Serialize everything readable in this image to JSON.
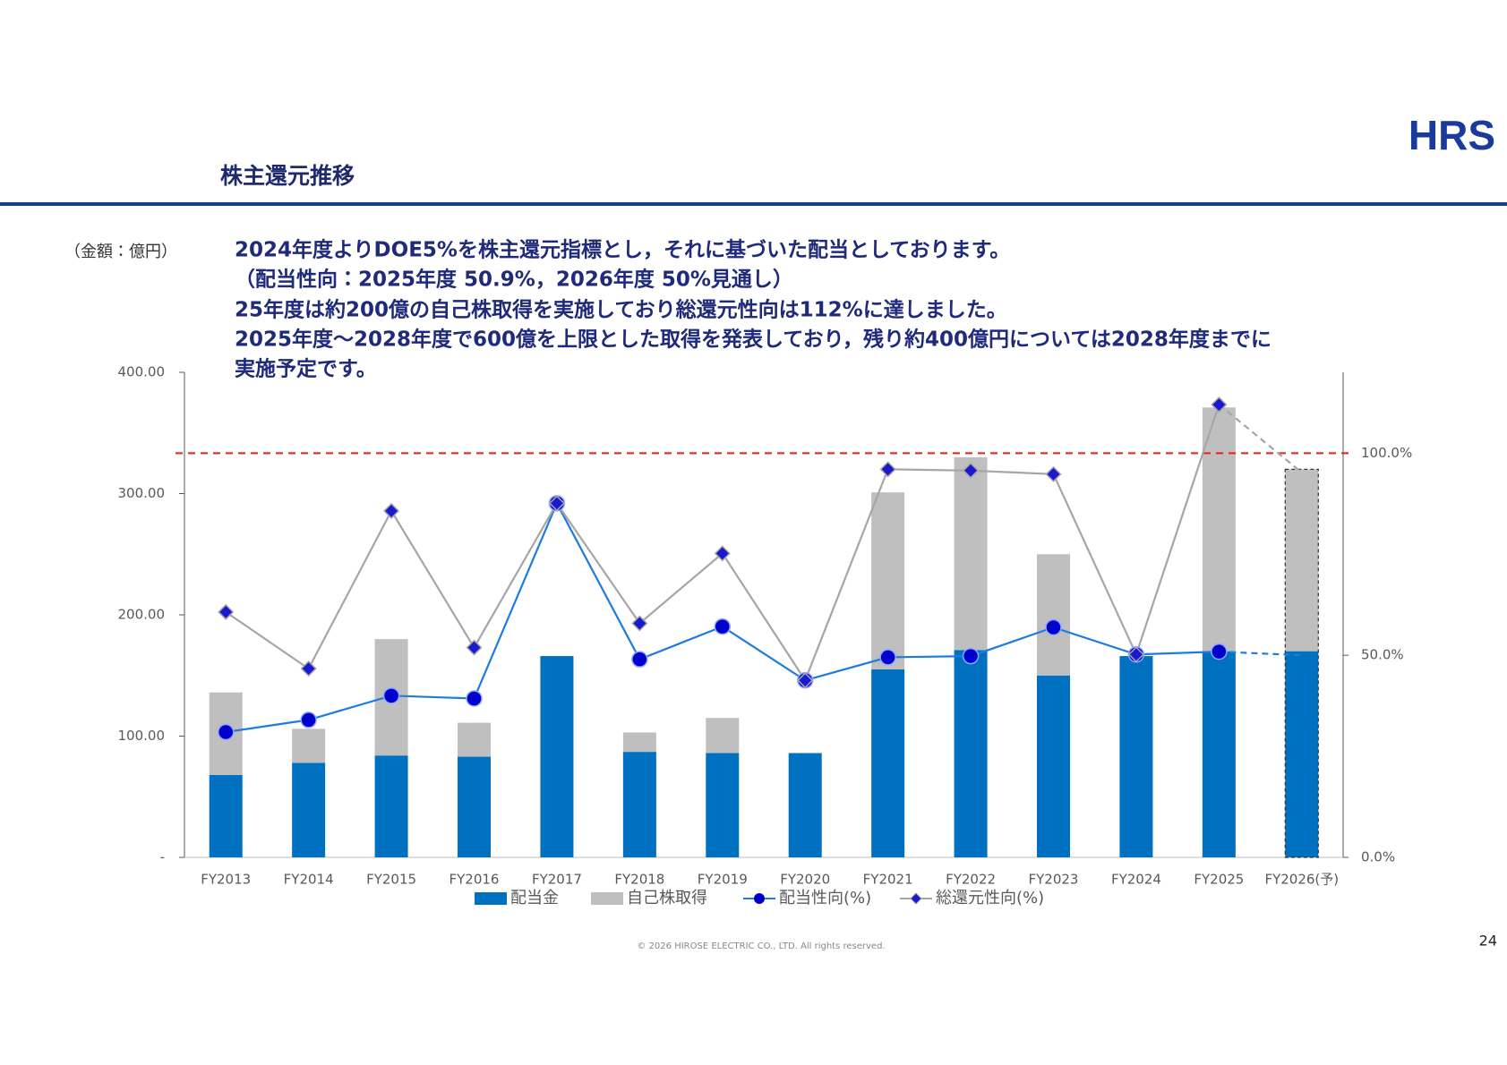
{
  "header": {
    "title": "株主還元推移",
    "logo": "HRS"
  },
  "unit_note": "（金額：億円）",
  "notes": [
    "2024年度よりDOE5%を株主還元指標とし，それに基づいた配当としております。",
    "（配当性向：2025年度 50.9%，2026年度 50%見通し）",
    "25年度は約200億の自己株取得を実施しており総還元性向は112%に達しました。",
    "2025年度～2028年度で600億を上限とした取得を発表しており，残り約400億円については2028年度までに",
    "実施予定です。"
  ],
  "chart_data": {
    "type": "bar-line",
    "categories": [
      "FY2013",
      "FY2014",
      "FY2015",
      "FY2016",
      "FY2017",
      "FY2018",
      "FY2019",
      "FY2020",
      "FY2021",
      "FY2022",
      "FY2023",
      "FY2024",
      "FY2025",
      "FY2026(予)"
    ],
    "series": [
      {
        "name": "配当金",
        "type": "bar",
        "color": "#0070c0",
        "values": [
          68,
          78,
          84,
          83,
          166,
          87,
          86,
          86,
          155,
          171,
          150,
          166,
          170,
          170
        ]
      },
      {
        "name": "自己株取得",
        "type": "bar",
        "color": "#bfbfbf",
        "values": [
          68,
          28,
          96,
          28,
          0,
          16,
          29,
          0,
          146,
          159,
          100,
          0,
          201,
          150
        ]
      },
      {
        "name": "配当性向(%)",
        "type": "line",
        "axis": "y2",
        "color": "#1e7be0",
        "marker_color": "#0000cc",
        "values": [
          31.0,
          34.0,
          40.0,
          39.3,
          87.6,
          49.0,
          57.1,
          43.8,
          49.5,
          49.8,
          56.9,
          50.2,
          50.9,
          50
        ]
      },
      {
        "name": "総還元性向(%)",
        "type": "line",
        "axis": "y2",
        "color": "#a6a6a6",
        "marker_color": "#1a1acd",
        "values": [
          60.7,
          46.7,
          85.7,
          51.9,
          87.6,
          57.9,
          75.2,
          43.8,
          96.0,
          95.7,
          94.8,
          50.2,
          112,
          95.2
        ]
      }
    ],
    "ylim": [
      0,
      400
    ],
    "yticks": [
      {
        "value": 0,
        "label": "-"
      },
      {
        "value": 100,
        "label": "100.00"
      },
      {
        "value": 200,
        "label": "200.00"
      },
      {
        "value": 300,
        "label": "300.00"
      },
      {
        "value": 400,
        "label": "400.00"
      }
    ],
    "y2lim": [
      0,
      120
    ],
    "y2ticks": [
      {
        "value": 0,
        "label": "0.0%"
      },
      {
        "value": 50,
        "label": "50.0%"
      },
      {
        "value": 100,
        "label": "100.0%"
      }
    ],
    "reference_y2": 100,
    "reference_color": "#ee1c1c",
    "legend": "bottom"
  },
  "footer": {
    "copyright": "© 2026 HIROSE ELECTRIC CO., LTD. All rights reserved.",
    "page": 24
  }
}
